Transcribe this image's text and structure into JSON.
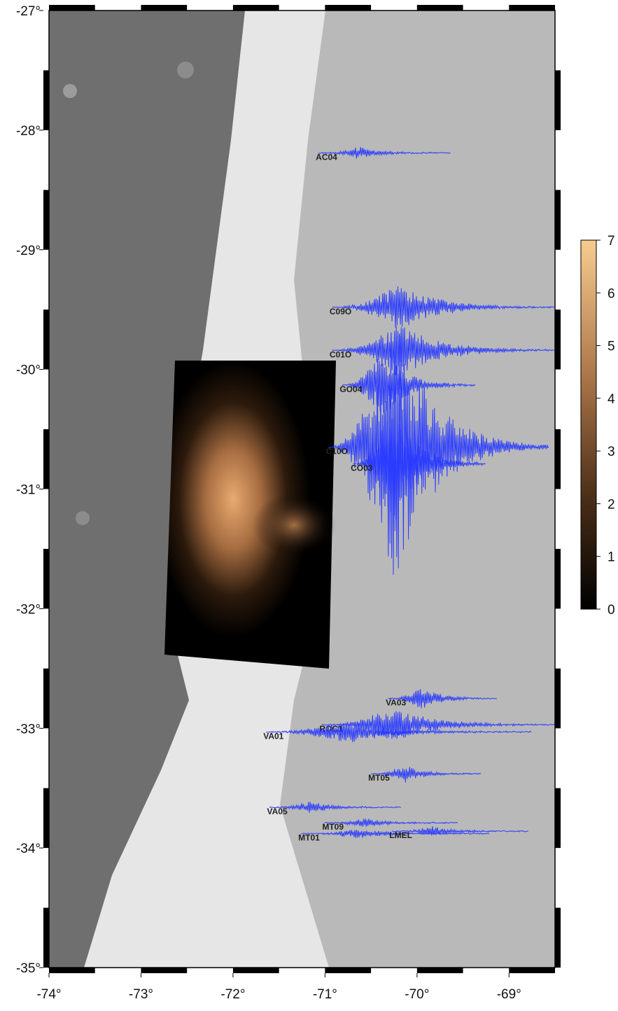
{
  "chart_data": {
    "type": "map",
    "xlim": [
      -74,
      -68.5
    ],
    "ylim": [
      -35,
      -27
    ],
    "xticks": [
      {
        "value": -74,
        "label": "-74°"
      },
      {
        "value": -73,
        "label": "-73°"
      },
      {
        "value": -72,
        "label": "-72°"
      },
      {
        "value": -71,
        "label": "-71°"
      },
      {
        "value": -70,
        "label": "-70°"
      },
      {
        "value": -69,
        "label": "-69°"
      }
    ],
    "yticks": [
      {
        "value": -27,
        "label": "-27°"
      },
      {
        "value": -28,
        "label": "-28°"
      },
      {
        "value": -29,
        "label": "-29°"
      },
      {
        "value": -30,
        "label": "-30°"
      },
      {
        "value": -31,
        "label": "-31°"
      },
      {
        "value": -32,
        "label": "-32°"
      },
      {
        "value": -33,
        "label": "-33°"
      },
      {
        "value": -34,
        "label": "-34°"
      },
      {
        "value": -35,
        "label": "-35°"
      }
    ],
    "trace_color": "#2b3cff",
    "stations": [
      {
        "name": "AC04",
        "lon": -71.07,
        "lat": -28.19,
        "end_lon": -69.63,
        "amplitude": 0.05
      },
      {
        "name": "C09O",
        "lon": -70.92,
        "lat": -29.48,
        "end_lon": -68.5,
        "amplitude": 0.2
      },
      {
        "name": "C01O",
        "lon": -70.92,
        "lat": -29.84,
        "end_lon": -68.5,
        "amplitude": 0.25
      },
      {
        "name": "GO04",
        "lon": -70.81,
        "lat": -30.13,
        "end_lon": -69.36,
        "amplitude": 0.3
      },
      {
        "name": "C10O",
        "lon": -70.96,
        "lat": -30.65,
        "end_lon": -68.56,
        "amplitude": 1.15
      },
      {
        "name": "CO03",
        "lon": -70.69,
        "lat": -30.79,
        "end_lon": -69.25,
        "amplitude": 0.55
      },
      {
        "name": "VA03",
        "lon": -70.31,
        "lat": -32.75,
        "end_lon": -69.13,
        "amplitude": 0.1
      },
      {
        "name": "ROC1",
        "lon": -71.03,
        "lat": -32.97,
        "end_lon": -68.5,
        "amplitude": 0.15
      },
      {
        "name": "VA01",
        "lon": -71.64,
        "lat": -33.03,
        "end_lon": -68.75,
        "amplitude": 0.1
      },
      {
        "name": "MT05",
        "lon": -70.5,
        "lat": -33.38,
        "end_lon": -69.3,
        "amplitude": 0.08
      },
      {
        "name": "VA05",
        "lon": -71.6,
        "lat": -33.66,
        "end_lon": -70.17,
        "amplitude": 0.05
      },
      {
        "name": "MT09",
        "lon": -71.0,
        "lat": -33.79,
        "end_lon": -69.55,
        "amplitude": 0.04
      },
      {
        "name": "MT01",
        "lon": -71.26,
        "lat": -33.88,
        "end_lon": -69.21,
        "amplitude": 0.04
      },
      {
        "name": "LMEL",
        "lon": -70.27,
        "lat": -33.86,
        "end_lon": -68.79,
        "amplitude": 0.04
      }
    ],
    "colorbar": {
      "ylim": [
        0,
        7
      ],
      "yticks": [
        0,
        1,
        2,
        3,
        4,
        5,
        6,
        7
      ]
    }
  }
}
